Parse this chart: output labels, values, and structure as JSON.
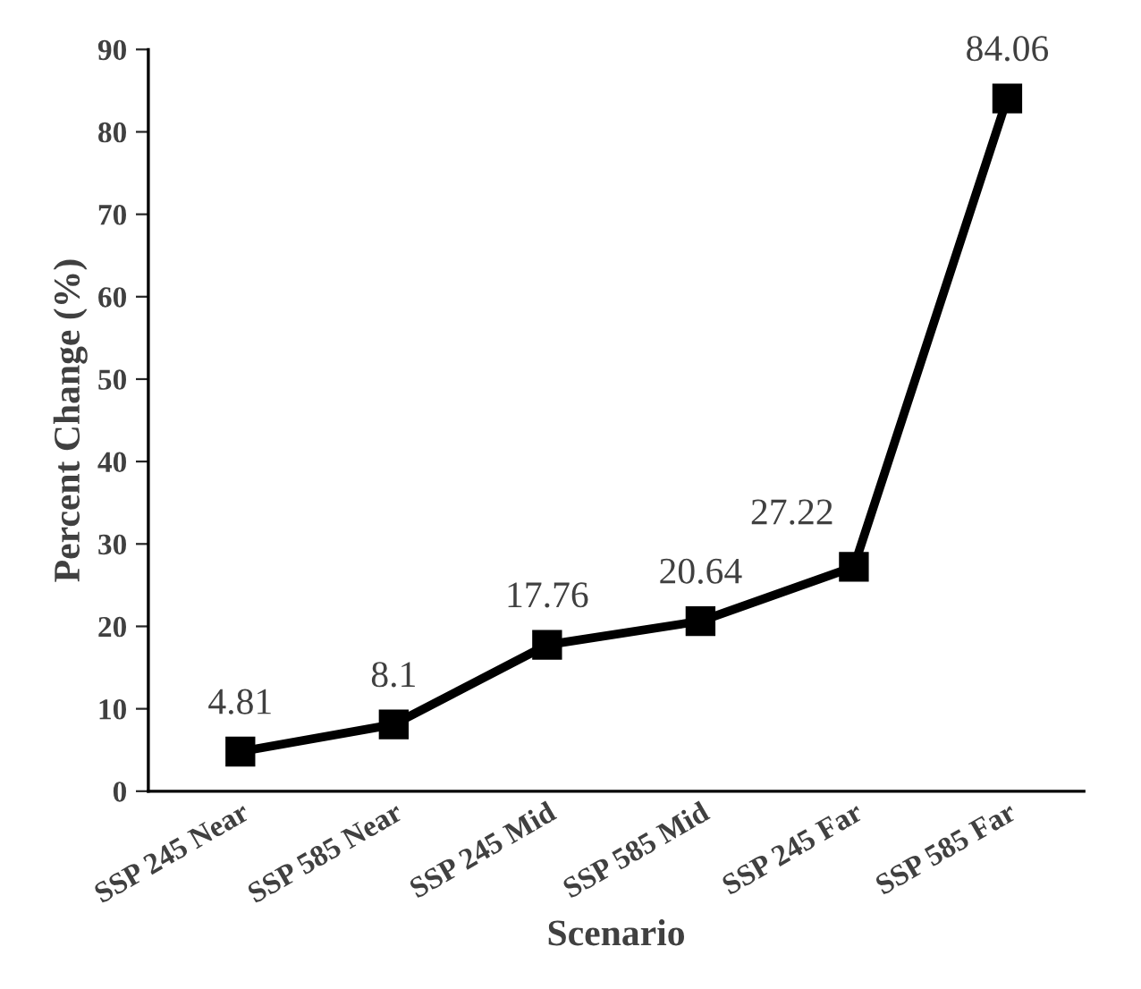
{
  "chart_data": {
    "type": "line",
    "xlabel": "Scenario",
    "ylabel": "Percent Change (%)",
    "categories": [
      "SSP 245 Near",
      "SSP 585 Near",
      "SSP 245 Mid",
      "SSP 585 Mid",
      "SSP 245 Far",
      "SSP 585 Far"
    ],
    "series": [
      {
        "color": "#000000",
        "values": [
          4.81,
          8.1,
          17.76,
          20.64,
          27.22,
          84.06
        ]
      }
    ],
    "ylim": [
      0,
      90
    ],
    "yticks": [
      0,
      10,
      20,
      30,
      40,
      50,
      60,
      70,
      80,
      90
    ],
    "marker": "square",
    "line_style": "solid",
    "grid": false,
    "legend": false,
    "data_labels": true
  }
}
